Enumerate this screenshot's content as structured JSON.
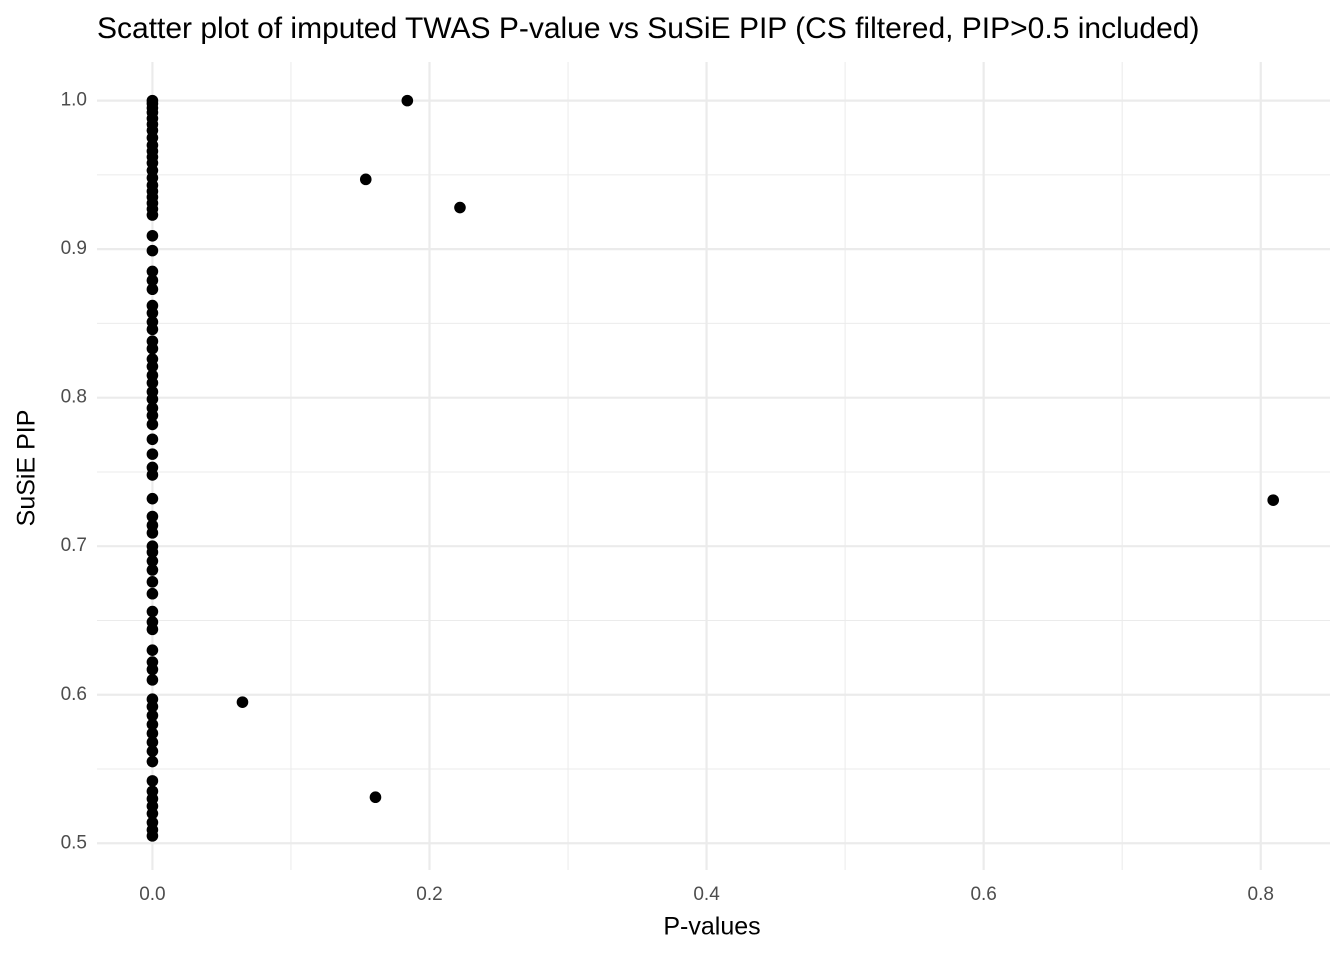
{
  "chart_data": {
    "type": "scatter",
    "title": "Scatter plot of imputed TWAS P-value vs SuSiE PIP (CS filtered, PIP>0.5 included)",
    "x_label": "P-values",
    "y_label": "SuSiE PIP",
    "color": "#000000",
    "grid": true,
    "xlim": [
      -0.04,
      0.85
    ],
    "ylim": [
      0.482,
      1.026
    ],
    "xticks": [
      {
        "value": 0,
        "label": "0.0"
      },
      0.2,
      0.4,
      0.6,
      0.8
    ],
    "yticks": [
      0.5,
      0.6,
      0.7,
      0.8,
      0.9,
      {
        "value": 1,
        "label": "1.0"
      }
    ],
    "x": [
      0,
      0,
      0,
      0,
      0,
      0,
      0,
      0,
      0,
      0,
      0,
      0,
      0,
      0,
      0,
      0,
      0,
      0,
      0,
      0,
      0,
      0,
      0,
      0,
      0,
      0,
      0,
      0,
      0,
      0,
      0,
      0,
      0,
      0,
      0,
      0,
      0,
      0,
      0,
      0,
      0,
      0,
      0,
      0,
      0,
      0,
      0,
      0,
      0,
      0,
      0,
      0,
      0,
      0,
      0,
      0,
      0,
      0,
      0,
      0,
      0,
      0,
      0,
      0,
      0,
      0,
      0,
      0,
      0,
      0,
      0,
      0,
      0,
      0,
      0,
      0,
      0,
      0.184,
      0.154,
      0.222,
      0.065,
      0.161,
      0.809
    ],
    "y": [
      1.0,
      0.998,
      0.995,
      0.992,
      0.988,
      0.984,
      0.98,
      0.975,
      0.97,
      0.966,
      0.962,
      0.958,
      0.953,
      0.948,
      0.943,
      0.939,
      0.935,
      0.931,
      0.927,
      0.923,
      0.909,
      0.899,
      0.885,
      0.879,
      0.873,
      0.862,
      0.857,
      0.851,
      0.846,
      0.838,
      0.833,
      0.826,
      0.821,
      0.815,
      0.81,
      0.804,
      0.799,
      0.793,
      0.788,
      0.782,
      0.772,
      0.762,
      0.753,
      0.748,
      0.732,
      0.72,
      0.714,
      0.709,
      0.7,
      0.696,
      0.69,
      0.684,
      0.676,
      0.668,
      0.656,
      0.649,
      0.644,
      0.63,
      0.622,
      0.617,
      0.61,
      0.597,
      0.592,
      0.586,
      0.58,
      0.574,
      0.568,
      0.562,
      0.555,
      0.542,
      0.535,
      0.53,
      0.525,
      0.52,
      0.514,
      0.509,
      0.505,
      1.0,
      0.947,
      0.928,
      0.595,
      0.531,
      0.731
    ]
  }
}
